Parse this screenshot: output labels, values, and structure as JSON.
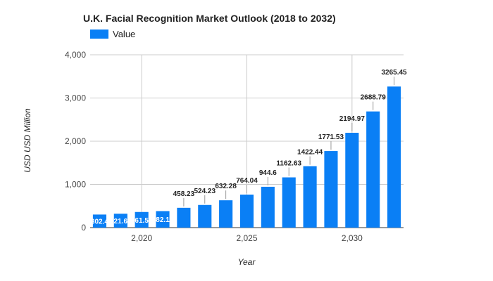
{
  "chart_data": {
    "type": "bar",
    "title": "U.K.  Facial Recognition Market Outlook (2018 to 2032)",
    "xlabel": "Year",
    "ylabel": "USD USD Million",
    "legend": {
      "position": "top-left",
      "entries": [
        "Value"
      ]
    },
    "series": [
      {
        "name": "Value",
        "color": "#0a7ff5",
        "x": [
          2018,
          2019,
          2020,
          2021,
          2022,
          2023,
          2024,
          2025,
          2026,
          2027,
          2028,
          2029,
          2030,
          2031,
          2032
        ],
        "values": [
          302.4,
          321.69,
          361.58,
          382.18,
          458.23,
          524.23,
          632.28,
          764.04,
          944.6,
          1162.63,
          1422.44,
          1771.53,
          2194.97,
          2688.79,
          3265.45
        ],
        "data_labels": [
          "302.4",
          "321.69",
          "361.58",
          "382.18",
          "458.23",
          "524.23",
          "632.28",
          "764.04",
          "944.6",
          "1162.63",
          "1422.44",
          "1771.53",
          "2194.97",
          "2688.79",
          "3265.45"
        ]
      }
    ],
    "ylim": [
      0,
      4000
    ],
    "xlim": [
      2017.55,
      2032.45
    ],
    "yticks": [
      0,
      1000,
      2000,
      3000,
      4000
    ],
    "ytick_labels": [
      "0",
      "1,000",
      "2,000",
      "3,000",
      "4,000"
    ],
    "xticks": [
      2020,
      2025,
      2030
    ],
    "xtick_labels": [
      "2,020",
      "2,025",
      "2,030"
    ],
    "grid": true
  }
}
